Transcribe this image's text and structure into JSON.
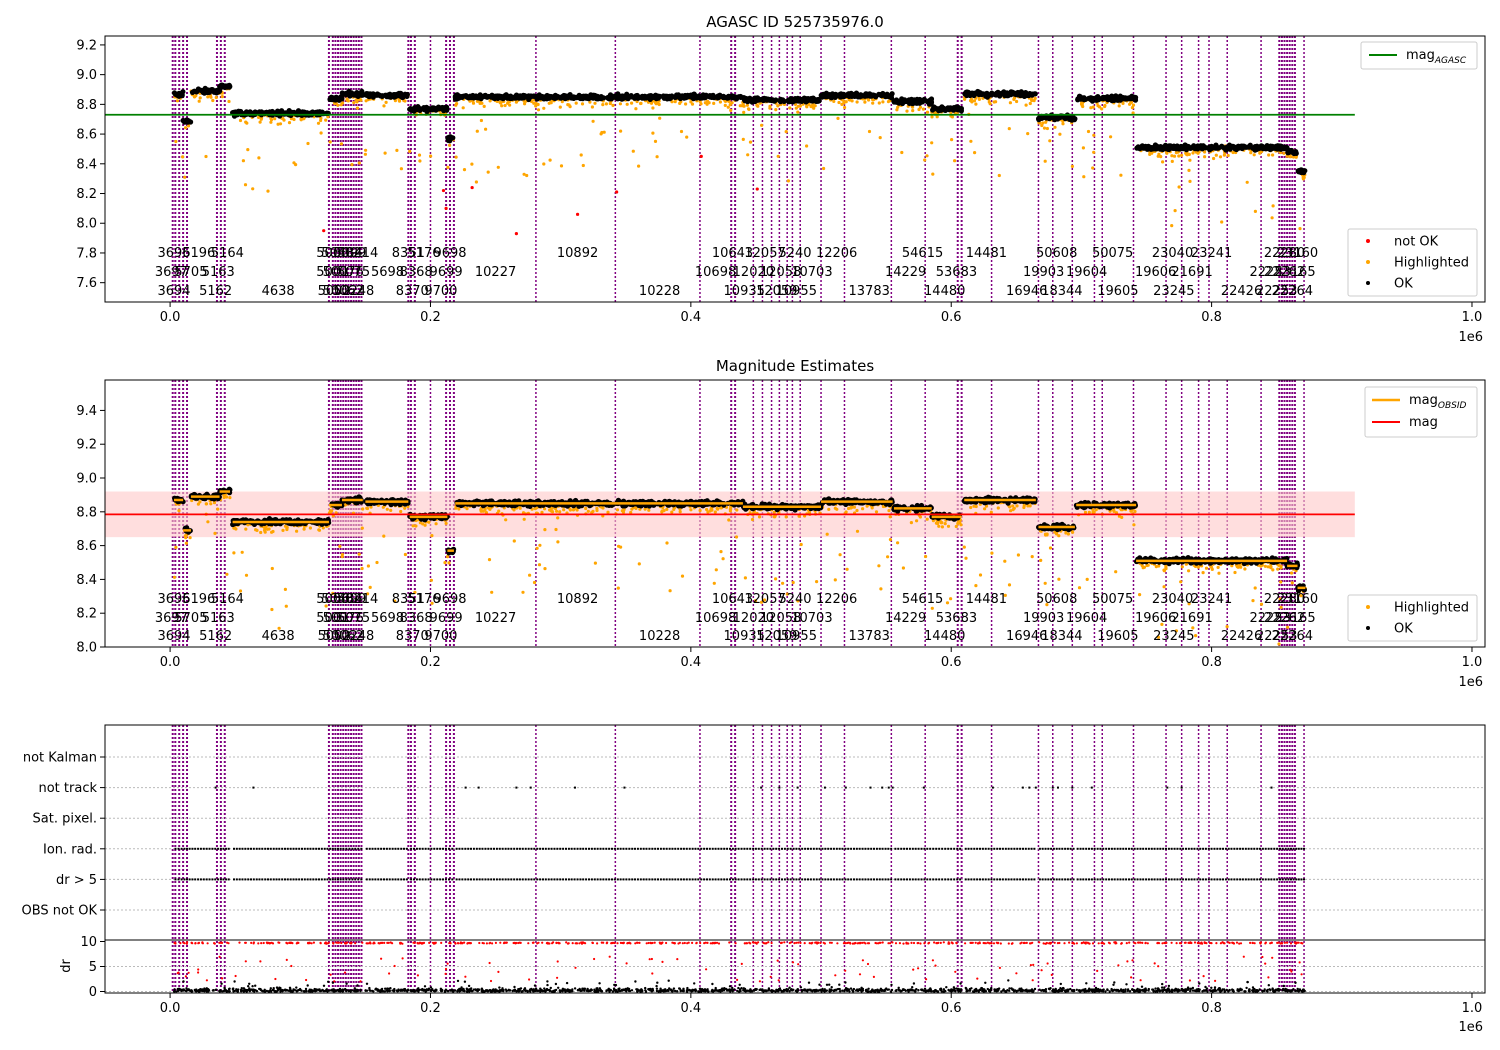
{
  "figure": {
    "offset_label": "1e6"
  },
  "chart_data": [
    {
      "type": "scatter",
      "title": "AGASC ID 525735976.0",
      "xlim": [
        -50000,
        1010000
      ],
      "ylim": [
        7.47,
        9.26
      ],
      "xticks": [
        0,
        200000,
        400000,
        600000,
        800000,
        1000000
      ],
      "xtick_labels": [
        "0.0",
        "0.2",
        "0.4",
        "0.6",
        "0.8",
        "1.0"
      ],
      "yticks": [
        7.6,
        7.8,
        8.0,
        8.2,
        8.4,
        8.6,
        8.8,
        9.0,
        9.2
      ],
      "ytick_labels": [
        "7.6",
        "7.8",
        "8.0",
        "8.2",
        "8.4",
        "8.6",
        "8.8",
        "9.0",
        "9.2"
      ],
      "reference_line": {
        "name": "mag_AGASC",
        "value": 8.73,
        "color": "#008000",
        "x_end": 910000
      },
      "legend": {
        "placement": "top-right",
        "label_base": "mag",
        "label_sub": "AGASC"
      },
      "legend2": {
        "placement": "bottom-right",
        "entries": [
          {
            "label": "not OK",
            "color": "#ff0000"
          },
          {
            "label": "Highlighted",
            "color": "#ffa500"
          },
          {
            "label": "OK",
            "color": "#000000"
          }
        ]
      }
    },
    {
      "type": "scatter",
      "title": "Magnitude Estimates",
      "xlim": [
        -50000,
        1010000
      ],
      "ylim": [
        8.0,
        9.58
      ],
      "xticks": [
        0,
        200000,
        400000,
        600000,
        800000,
        1000000
      ],
      "xtick_labels": [
        "0.0",
        "0.2",
        "0.4",
        "0.6",
        "0.8",
        "1.0"
      ],
      "yticks": [
        8.0,
        8.2,
        8.4,
        8.6,
        8.8,
        9.0,
        9.2,
        9.4
      ],
      "ytick_labels": [
        "8.0",
        "8.2",
        "8.4",
        "8.6",
        "8.8",
        "9.0",
        "9.2",
        "9.4"
      ],
      "mag_line": {
        "name": "mag",
        "value": 8.785,
        "band": [
          8.65,
          8.92
        ],
        "color": "#ff0000",
        "x_end": 910000
      },
      "legend": {
        "placement": "top-right",
        "entries": [
          {
            "label_base": "mag",
            "label_sub": "OBSID",
            "color": "#ffa500"
          },
          {
            "label_base": "mag",
            "label_sub": "",
            "color": "#ff0000"
          }
        ]
      },
      "legend2": {
        "placement": "bottom-right",
        "entries": [
          {
            "label": "Highlighted",
            "color": "#ffa500"
          },
          {
            "label": "OK",
            "color": "#000000"
          }
        ]
      }
    },
    {
      "type": "scatter",
      "title": "",
      "xlim": [
        -50000,
        1010000
      ],
      "xticks": [
        0,
        200000,
        400000,
        600000,
        800000,
        1000000
      ],
      "xtick_labels": [
        "0.0",
        "0.2",
        "0.4",
        "0.6",
        "0.8",
        "1.0"
      ],
      "flag_labels": [
        "not Kalman",
        "not track",
        "Sat. pixel.",
        "Ion. rad.",
        "dr > 5",
        "OBS not OK"
      ],
      "dr_ylabel": "dr",
      "dr_yticks": [
        0,
        5,
        10
      ],
      "dr_ytick_labels": [
        "0",
        "5",
        "10"
      ],
      "dr_ylim": [
        -0.3,
        10.3
      ]
    }
  ],
  "observations": {
    "segments": [
      {
        "x0": 3000,
        "x1": 10000,
        "m": 8.87
      },
      {
        "x0": 10000,
        "x1": 16000,
        "m": 8.69
      },
      {
        "x0": 16000,
        "x1": 38000,
        "m": 8.89
      },
      {
        "x0": 38000,
        "x1": 46000,
        "m": 8.92
      },
      {
        "x0": 48000,
        "x1": 122000,
        "m": 8.74
      },
      {
        "x0": 122000,
        "x1": 132000,
        "m": 8.84
      },
      {
        "x0": 132000,
        "x1": 148000,
        "m": 8.87
      },
      {
        "x0": 150000,
        "x1": 183000,
        "m": 8.86
      },
      {
        "x0": 184000,
        "x1": 213000,
        "m": 8.77
      },
      {
        "x0": 213000,
        "x1": 218000,
        "m": 8.57
      },
      {
        "x0": 219000,
        "x1": 440000,
        "m": 8.85
      },
      {
        "x0": 440000,
        "x1": 500000,
        "m": 8.83
      },
      {
        "x0": 500000,
        "x1": 555000,
        "m": 8.86
      },
      {
        "x0": 556000,
        "x1": 585000,
        "m": 8.82
      },
      {
        "x0": 585000,
        "x1": 608000,
        "m": 8.77
      },
      {
        "x0": 610000,
        "x1": 665000,
        "m": 8.87
      },
      {
        "x0": 667000,
        "x1": 695000,
        "m": 8.71
      },
      {
        "x0": 696000,
        "x1": 742000,
        "m": 8.84
      },
      {
        "x0": 742000,
        "x1": 858000,
        "m": 8.51
      },
      {
        "x0": 858000,
        "x1": 866000,
        "m": 8.48
      },
      {
        "x0": 866000,
        "x1": 872000,
        "m": 8.35
      }
    ],
    "lines": [
      {
        "x": 2000,
        "w": 2
      },
      {
        "x": 4000,
        "w": 2
      },
      {
        "x": 7000,
        "w": 2
      },
      {
        "x": 10000,
        "w": 2
      },
      {
        "x": 13000,
        "w": 2
      },
      {
        "x": 36000,
        "w": 2
      },
      {
        "x": 39000,
        "w": 2
      },
      {
        "x": 42000,
        "w": 2
      },
      {
        "x": 122000,
        "w": 2
      },
      {
        "x": 125000,
        "w": 2
      },
      {
        "x": 127000,
        "w": 2
      },
      {
        "x": 129000,
        "w": 2
      },
      {
        "x": 131000,
        "w": 2
      },
      {
        "x": 133000,
        "w": 2
      },
      {
        "x": 135000,
        "w": 2
      },
      {
        "x": 137000,
        "w": 2
      },
      {
        "x": 139000,
        "w": 2
      },
      {
        "x": 141000,
        "w": 2
      },
      {
        "x": 143000,
        "w": 2
      },
      {
        "x": 145000,
        "w": 2
      },
      {
        "x": 147000,
        "w": 2
      },
      {
        "x": 183000,
        "w": 2
      },
      {
        "x": 185000,
        "w": 2
      },
      {
        "x": 188000,
        "w": 2
      },
      {
        "x": 200000,
        "w": 1.5
      },
      {
        "x": 212000,
        "w": 2
      },
      {
        "x": 215000,
        "w": 2
      },
      {
        "x": 218000,
        "w": 2
      },
      {
        "x": 281000,
        "w": 1.5
      },
      {
        "x": 342000,
        "w": 1.5
      },
      {
        "x": 407000,
        "w": 1.5
      },
      {
        "x": 431000,
        "w": 2
      },
      {
        "x": 434000,
        "w": 2
      },
      {
        "x": 448000,
        "w": 1.5
      },
      {
        "x": 455000,
        "w": 1.5
      },
      {
        "x": 462000,
        "w": 1.5
      },
      {
        "x": 468000,
        "w": 1.5
      },
      {
        "x": 474000,
        "w": 1.5
      },
      {
        "x": 478000,
        "w": 1.5
      },
      {
        "x": 484000,
        "w": 1.5
      },
      {
        "x": 500000,
        "w": 1.5
      },
      {
        "x": 518000,
        "w": 1.5
      },
      {
        "x": 554000,
        "w": 1.5
      },
      {
        "x": 580000,
        "w": 1.5
      },
      {
        "x": 605000,
        "w": 2
      },
      {
        "x": 608000,
        "w": 2
      },
      {
        "x": 631000,
        "w": 1.5
      },
      {
        "x": 667000,
        "w": 1.5
      },
      {
        "x": 678000,
        "w": 1.5
      },
      {
        "x": 693000,
        "w": 1.5
      },
      {
        "x": 710000,
        "w": 1.5
      },
      {
        "x": 716000,
        "w": 1.5
      },
      {
        "x": 740000,
        "w": 1.5
      },
      {
        "x": 765000,
        "w": 1.5
      },
      {
        "x": 777000,
        "w": 1.5
      },
      {
        "x": 790000,
        "w": 1.5
      },
      {
        "x": 798000,
        "w": 1.5
      },
      {
        "x": 812000,
        "w": 1.5
      },
      {
        "x": 838000,
        "w": 1.5
      },
      {
        "x": 852000,
        "w": 2
      },
      {
        "x": 854000,
        "w": 2
      },
      {
        "x": 856000,
        "w": 2
      },
      {
        "x": 858000,
        "w": 2
      },
      {
        "x": 860000,
        "w": 2
      },
      {
        "x": 862000,
        "w": 2
      },
      {
        "x": 864000,
        "w": 2
      },
      {
        "x": 871000,
        "w": 1.5
      }
    ],
    "labels": [
      {
        "t": "3696",
        "x": 3000,
        "r": 0
      },
      {
        "t": "5196",
        "x": 22000,
        "r": 0
      },
      {
        "t": "5164",
        "x": 44000,
        "r": 0
      },
      {
        "t": "5000",
        "x": 125000,
        "r": 0
      },
      {
        "t": "50484",
        "x": 132000,
        "r": 0
      },
      {
        "t": "5699",
        "x": 138000,
        "r": 0
      },
      {
        "t": "50214",
        "x": 144000,
        "r": 0
      },
      {
        "t": "8351",
        "x": 183000,
        "r": 0
      },
      {
        "t": "5176",
        "x": 195000,
        "r": 0
      },
      {
        "t": "9698",
        "x": 215000,
        "r": 0
      },
      {
        "t": "10892",
        "x": 313000,
        "r": 0
      },
      {
        "t": "10643",
        "x": 432000,
        "r": 0
      },
      {
        "t": "12057",
        "x": 457000,
        "r": 0
      },
      {
        "t": "5240",
        "x": 480000,
        "r": 0
      },
      {
        "t": "12206",
        "x": 512000,
        "r": 0
      },
      {
        "t": "54615",
        "x": 578000,
        "r": 0
      },
      {
        "t": "14481",
        "x": 627000,
        "r": 0
      },
      {
        "t": "50608",
        "x": 681000,
        "r": 0
      },
      {
        "t": "50075",
        "x": 724000,
        "r": 0
      },
      {
        "t": "23040",
        "x": 770000,
        "r": 0
      },
      {
        "t": "23241",
        "x": 800000,
        "r": 0
      },
      {
        "t": "22280",
        "x": 856000,
        "r": 0
      },
      {
        "t": "23160",
        "x": 866000,
        "r": 0
      },
      {
        "t": "3697",
        "x": 1000,
        "r": 1
      },
      {
        "t": "5705",
        "x": 16000,
        "r": 1
      },
      {
        "t": "5163",
        "x": 37000,
        "r": 1
      },
      {
        "t": "5001",
        "x": 125000,
        "r": 1
      },
      {
        "t": "50076",
        "x": 133000,
        "r": 1
      },
      {
        "t": "5075",
        "x": 141000,
        "r": 1
      },
      {
        "t": "5698",
        "x": 167000,
        "r": 1
      },
      {
        "t": "8368",
        "x": 189000,
        "r": 1
      },
      {
        "t": "9699",
        "x": 212000,
        "r": 1
      },
      {
        "t": "10227",
        "x": 250000,
        "r": 1
      },
      {
        "t": "10698",
        "x": 419000,
        "r": 1
      },
      {
        "t": "12020",
        "x": 448000,
        "r": 1
      },
      {
        "t": "12058",
        "x": 469000,
        "r": 1
      },
      {
        "t": "10703",
        "x": 493000,
        "r": 1
      },
      {
        "t": "14229",
        "x": 565000,
        "r": 1
      },
      {
        "t": "53683",
        "x": 604000,
        "r": 1
      },
      {
        "t": "19903",
        "x": 671000,
        "r": 1
      },
      {
        "t": "19604",
        "x": 704000,
        "r": 1
      },
      {
        "t": "19606",
        "x": 757000,
        "r": 1
      },
      {
        "t": "21691",
        "x": 785000,
        "r": 1
      },
      {
        "t": "22253",
        "x": 845000,
        "r": 1
      },
      {
        "t": "22262",
        "x": 856000,
        "r": 1
      },
      {
        "t": "23165",
        "x": 864000,
        "r": 1
      },
      {
        "t": "3694",
        "x": 3000,
        "r": 2
      },
      {
        "t": "5162",
        "x": 35000,
        "r": 2
      },
      {
        "t": "4638",
        "x": 83000,
        "r": 2
      },
      {
        "t": "5002",
        "x": 126000,
        "r": 2
      },
      {
        "t": "50062",
        "x": 133000,
        "r": 2
      },
      {
        "t": "50248",
        "x": 141000,
        "r": 2
      },
      {
        "t": "8370",
        "x": 186000,
        "r": 2
      },
      {
        "t": "9700",
        "x": 208000,
        "r": 2
      },
      {
        "t": "10228",
        "x": 376000,
        "r": 2
      },
      {
        "t": "10935",
        "x": 441000,
        "r": 2
      },
      {
        "t": "12059",
        "x": 466000,
        "r": 2
      },
      {
        "t": "10955",
        "x": 481000,
        "r": 2
      },
      {
        "t": "13783",
        "x": 537000,
        "r": 2
      },
      {
        "t": "14480",
        "x": 595000,
        "r": 2
      },
      {
        "t": "16946",
        "x": 658000,
        "r": 2
      },
      {
        "t": "18344",
        "x": 685000,
        "r": 2
      },
      {
        "t": "19605",
        "x": 728000,
        "r": 2
      },
      {
        "t": "23245",
        "x": 771000,
        "r": 2
      },
      {
        "t": "22426",
        "x": 823000,
        "r": 2
      },
      {
        "t": "22253",
        "x": 850000,
        "r": 2
      },
      {
        "t": "22264",
        "x": 862000,
        "r": 2
      }
    ]
  },
  "flags": {
    "not_track_x": [
      35000,
      64000,
      227000,
      237000,
      266000,
      277000,
      311000,
      349000,
      454000,
      468000,
      482000,
      503000,
      519000,
      538000,
      547000,
      552000,
      555000,
      579000,
      632000,
      655000,
      660000,
      665000,
      678000,
      682000,
      693000,
      708000,
      766000,
      777000,
      846000
    ]
  }
}
